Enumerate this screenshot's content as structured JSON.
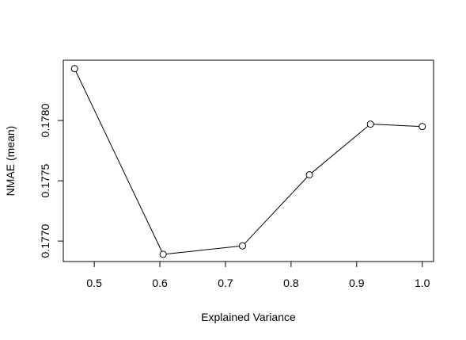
{
  "chart_data": {
    "type": "line",
    "xlabel": "Explained Variance",
    "ylabel": "NMAE (mean)",
    "x": [
      0.47,
      0.605,
      0.726,
      0.828,
      0.921,
      1.0
    ],
    "series": [
      {
        "values": [
          0.17843,
          0.17689,
          0.17696,
          0.17755,
          0.17797,
          0.17795
        ]
      }
    ],
    "xlim": [
      0.4528,
      1.0172
    ],
    "ylim": [
      0.17683,
      0.1785
    ],
    "xticks": [
      0.5,
      0.6,
      0.7,
      0.8,
      0.9,
      1.0
    ],
    "xtick_labels": [
      "0.5",
      "0.6",
      "0.7",
      "0.8",
      "0.9",
      "1.0"
    ],
    "yticks": [
      0.177,
      0.1775,
      0.178
    ],
    "ytick_labels": [
      "0.1770",
      "0.1775",
      "0.1780"
    ],
    "grid": false,
    "marker": "open-circle",
    "line_color": "#000000"
  }
}
